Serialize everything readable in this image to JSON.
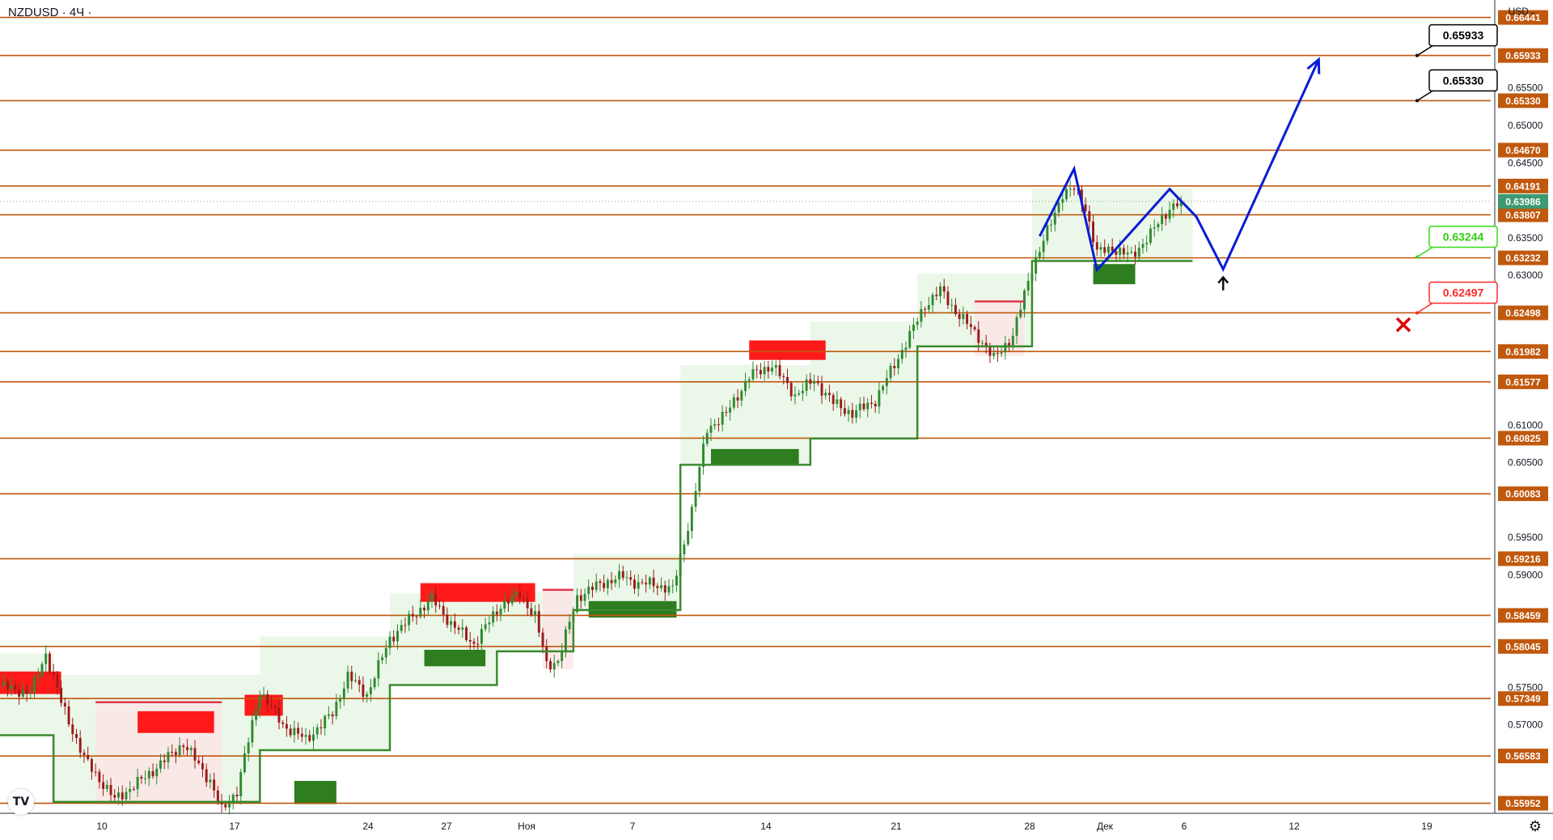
{
  "symbol": "NZDUSD · 4Ч ·",
  "currency": "USD",
  "logo_text": "TV",
  "settings_icon": "gear-icon",
  "colors": {
    "level_line": "#c0580d",
    "level_label_bg": "#c0580d",
    "current_price_bg": "#3d9970",
    "path_line": "#0a1bd6",
    "support_line": "#3a8a2e",
    "resistance_line": "#e0364c",
    "green_zone": "#2e7d1f",
    "red_zone": "#ff1a1a",
    "candle_up": "#2f8a2f",
    "candle_down": "#9b1b1b"
  },
  "chart_data": {
    "type": "candlestick",
    "ylim": [
      0.5585,
      0.6662
    ],
    "x_tick_labels": [
      "10",
      "17",
      "24",
      "27",
      "Ноя",
      "7",
      "14",
      "21",
      "28",
      "Дек",
      "6",
      "12",
      "19"
    ],
    "y_tick_labels": [
      "0.65500",
      "0.65000",
      "0.64500",
      "0.63500",
      "0.63000",
      "0.61000",
      "0.60500",
      "0.59500",
      "0.59000",
      "0.57500",
      "0.57000"
    ],
    "levels": [
      "0.66441",
      "0.65933",
      "0.65330",
      "0.64670",
      "0.64191",
      "0.63807",
      "0.63232",
      "0.62498",
      "0.61982",
      "0.61577",
      "0.60825",
      "0.60083",
      "0.59216",
      "0.58459",
      "0.58045",
      "0.57349",
      "0.56583",
      "0.55952"
    ],
    "current_price": "0.63986",
    "targets": [
      {
        "label": "0.65933",
        "style": "black"
      },
      {
        "label": "0.65330",
        "style": "black"
      },
      {
        "label": "0.63244",
        "style": "green"
      },
      {
        "label": "0.62497",
        "style": "red"
      }
    ],
    "forecast_path": [
      {
        "i": 272,
        "p": 0.6352
      },
      {
        "i": 281,
        "p": 0.6442
      },
      {
        "i": 287,
        "p": 0.6307
      },
      {
        "i": 306,
        "p": 0.6415
      },
      {
        "i": 313,
        "p": 0.6378
      },
      {
        "i": 320,
        "p": 0.6308
      },
      {
        "i": 345,
        "p": 0.6588
      }
    ],
    "support_segments": [
      {
        "from": 0,
        "to": 14,
        "p": 0.5686
      },
      {
        "from": 14,
        "to": 68,
        "p": 0.5597
      },
      {
        "from": 68,
        "to": 102,
        "p": 0.5666
      },
      {
        "from": 102,
        "to": 130,
        "p": 0.5753
      },
      {
        "from": 130,
        "to": 150,
        "p": 0.5798
      },
      {
        "from": 150,
        "to": 178,
        "p": 0.5853
      },
      {
        "from": 178,
        "to": 212,
        "p": 0.6047
      },
      {
        "from": 212,
        "to": 240,
        "p": 0.6082
      },
      {
        "from": 240,
        "to": 270,
        "p": 0.6205
      },
      {
        "from": 270,
        "to": 312,
        "p": 0.6319
      }
    ],
    "resistance_segments": [
      {
        "from": 25,
        "to": 58,
        "p": 0.573
      },
      {
        "from": 142,
        "to": 150,
        "p": 0.588
      },
      {
        "from": 255,
        "to": 268,
        "p": 0.6265
      }
    ],
    "zones": [
      {
        "from": 0,
        "to": 16,
        "p_top": 0.5771,
        "p_bot": 0.5741,
        "color": "red"
      },
      {
        "from": 36,
        "to": 56,
        "p_top": 0.5718,
        "p_bot": 0.5689,
        "color": "red"
      },
      {
        "from": 64,
        "to": 74,
        "p_top": 0.574,
        "p_bot": 0.5712,
        "color": "red"
      },
      {
        "from": 110,
        "to": 140,
        "p_top": 0.5889,
        "p_bot": 0.5864,
        "color": "red"
      },
      {
        "from": 196,
        "to": 216,
        "p_top": 0.6213,
        "p_bot": 0.6187,
        "color": "red"
      },
      {
        "from": 77,
        "to": 88,
        "p_top": 0.5625,
        "p_bot": 0.5594,
        "color": "green"
      },
      {
        "from": 111,
        "to": 127,
        "p_top": 0.58,
        "p_bot": 0.5778,
        "color": "green"
      },
      {
        "from": 154,
        "to": 177,
        "p_top": 0.5865,
        "p_bot": 0.5843,
        "color": "green"
      },
      {
        "from": 186,
        "to": 209,
        "p_top": 0.6068,
        "p_bot": 0.6047,
        "color": "green"
      },
      {
        "from": 286,
        "to": 297,
        "p_top": 0.6315,
        "p_bot": 0.6288,
        "color": "green"
      }
    ],
    "swing_points": [
      [
        0,
        0.5752
      ],
      [
        8,
        0.5742
      ],
      [
        12,
        0.5795
      ],
      [
        16,
        0.573
      ],
      [
        22,
        0.5655
      ],
      [
        30,
        0.56
      ],
      [
        38,
        0.563
      ],
      [
        48,
        0.5675
      ],
      [
        55,
        0.5625
      ],
      [
        58,
        0.5585
      ],
      [
        62,
        0.5612
      ],
      [
        68,
        0.5745
      ],
      [
        74,
        0.57
      ],
      [
        80,
        0.568
      ],
      [
        87,
        0.5715
      ],
      [
        91,
        0.5765
      ],
      [
        96,
        0.574
      ],
      [
        102,
        0.5815
      ],
      [
        108,
        0.5845
      ],
      [
        113,
        0.5868
      ],
      [
        118,
        0.5835
      ],
      [
        124,
        0.5808
      ],
      [
        131,
        0.586
      ],
      [
        136,
        0.5874
      ],
      [
        140,
        0.5845
      ],
      [
        143,
        0.578
      ],
      [
        146,
        0.5785
      ],
      [
        151,
        0.587
      ],
      [
        157,
        0.5888
      ],
      [
        163,
        0.5898
      ],
      [
        167,
        0.5888
      ],
      [
        171,
        0.5888
      ],
      [
        176,
        0.588
      ],
      [
        181,
        0.5987
      ],
      [
        185,
        0.6095
      ],
      [
        190,
        0.6115
      ],
      [
        196,
        0.6165
      ],
      [
        202,
        0.618
      ],
      [
        208,
        0.614
      ],
      [
        213,
        0.616
      ],
      [
        218,
        0.613
      ],
      [
        223,
        0.6115
      ],
      [
        229,
        0.6133
      ],
      [
        236,
        0.62
      ],
      [
        242,
        0.626
      ],
      [
        246,
        0.628
      ],
      [
        250,
        0.6252
      ],
      [
        256,
        0.6218
      ],
      [
        260,
        0.6188
      ],
      [
        265,
        0.622
      ],
      [
        270,
        0.631
      ],
      [
        275,
        0.637
      ],
      [
        278,
        0.641
      ],
      [
        281,
        0.6415
      ],
      [
        284,
        0.639
      ],
      [
        287,
        0.633
      ],
      [
        291,
        0.6336
      ],
      [
        296,
        0.6325
      ],
      [
        301,
        0.6355
      ],
      [
        306,
        0.639
      ],
      [
        309,
        0.6398
      ]
    ]
  }
}
